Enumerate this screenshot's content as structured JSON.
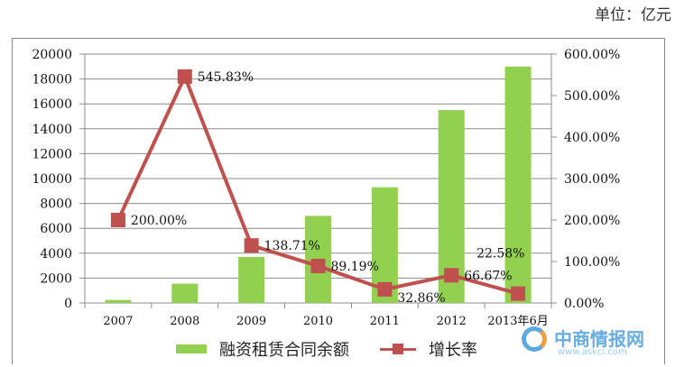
{
  "unit_label": "单位：亿元",
  "chart_data": {
    "type": "bar+line",
    "title": "",
    "categories": [
      "2007",
      "2008",
      "2009",
      "2010",
      "2011",
      "2012",
      "2013年6月"
    ],
    "series": [
      {
        "name": "融资租赁合同余额",
        "type": "bar",
        "axis": "left",
        "color": "#92d050",
        "values": [
          240,
          1550,
          3700,
          7000,
          9300,
          15500,
          19000
        ]
      },
      {
        "name": "增长率",
        "type": "line",
        "axis": "right",
        "color": "#c0504d",
        "values": [
          200.0,
          545.83,
          138.71,
          89.19,
          32.86,
          66.67,
          22.58
        ],
        "labels": [
          "200.00%",
          "545.83%",
          "138.71%",
          "89.19%",
          "32.86%",
          "66.67%",
          "22.58%"
        ]
      }
    ],
    "left_axis": {
      "min": 0,
      "max": 20000,
      "step": 2000,
      "ticks": [
        "0",
        "2000",
        "4000",
        "6000",
        "8000",
        "10000",
        "12000",
        "14000",
        "16000",
        "18000",
        "20000"
      ]
    },
    "right_axis": {
      "min": 0,
      "max": 600,
      "step": 100,
      "ticks": [
        "0.00%",
        "100.00%",
        "200.00%",
        "300.00%",
        "400.00%",
        "500.00%",
        "600.00%"
      ]
    },
    "grid": true,
    "legend_position": "bottom"
  },
  "legend": {
    "bar": "融资租赁合同余额",
    "line": "增长率"
  },
  "watermark": {
    "name": "中商情报网",
    "url": "www.askci.com"
  }
}
